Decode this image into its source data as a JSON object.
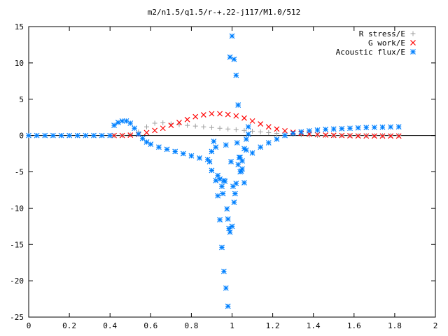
{
  "chart_data": {
    "type": "scatter",
    "title": "m2/n1.5/q1.5/r-+.22-j117/M1.0/512",
    "xlim": [
      0,
      2
    ],
    "ylim": [
      -25,
      15
    ],
    "x_ticks": [
      "0",
      "0.2",
      "0.4",
      "0.6",
      "0.8",
      "1",
      "1.2",
      "1.4",
      "1.6",
      "1.8",
      "2"
    ],
    "y_ticks": [
      "15",
      "10",
      "5",
      "0",
      "-5",
      "-10",
      "-15",
      "-20",
      "-25"
    ],
    "grid": false,
    "legend_position": "top-right",
    "series": [
      {
        "name": "R stress/E",
        "marker": "plus",
        "color": "#a0a0a0",
        "x": [
          0.42,
          0.46,
          0.5,
          0.54,
          0.58,
          0.62,
          0.66,
          0.7,
          0.74,
          0.78,
          0.82,
          0.86,
          0.9,
          0.94,
          0.98,
          1.02,
          1.06,
          1.1,
          1.14,
          1.18,
          1.22,
          1.26,
          1.3,
          1.34,
          1.38,
          1.42,
          1.46,
          1.5,
          1.54,
          1.58,
          1.62,
          1.66,
          1.7,
          1.74,
          1.78,
          1.82
        ],
        "y": [
          0.0,
          0.02,
          0.1,
          0.5,
          1.2,
          1.7,
          1.75,
          1.6,
          1.5,
          1.4,
          1.3,
          1.2,
          1.1,
          1.0,
          0.9,
          0.8,
          0.7,
          0.6,
          0.5,
          0.4,
          0.3,
          0.2,
          0.15,
          0.1,
          0.05,
          0.02,
          0.0,
          0.0,
          0.0,
          0.0,
          0.0,
          0.0,
          0.0,
          0.0,
          0.0,
          0.0
        ]
      },
      {
        "name": "G work/E",
        "marker": "cross",
        "color": "#ff0000",
        "x": [
          0.42,
          0.46,
          0.5,
          0.54,
          0.58,
          0.62,
          0.66,
          0.7,
          0.74,
          0.78,
          0.82,
          0.86,
          0.9,
          0.94,
          0.98,
          1.02,
          1.06,
          1.1,
          1.14,
          1.18,
          1.22,
          1.26,
          1.3,
          1.34,
          1.38,
          1.42,
          1.46,
          1.5,
          1.54,
          1.58,
          1.62,
          1.66,
          1.7,
          1.74,
          1.78,
          1.82
        ],
        "y": [
          0.0,
          0.0,
          0.05,
          0.15,
          0.4,
          0.7,
          1.0,
          1.4,
          1.8,
          2.2,
          2.6,
          2.85,
          3.0,
          3.0,
          2.9,
          2.7,
          2.4,
          2.0,
          1.6,
          1.2,
          0.9,
          0.65,
          0.45,
          0.3,
          0.2,
          0.12,
          0.07,
          0.03,
          0.0,
          -0.03,
          -0.05,
          -0.06,
          -0.07,
          -0.07,
          -0.07,
          -0.07
        ]
      },
      {
        "name": "Acoustic flux/E",
        "marker": "star",
        "color": "#0080ff",
        "x": [
          0.0,
          0.04,
          0.08,
          0.12,
          0.16,
          0.2,
          0.24,
          0.28,
          0.32,
          0.36,
          0.4,
          0.42,
          0.44,
          0.46,
          0.48,
          0.5,
          0.52,
          0.54,
          0.56,
          0.58,
          0.6,
          0.64,
          0.68,
          0.72,
          0.76,
          0.8,
          0.84,
          0.88,
          0.9,
          0.92,
          0.93,
          0.94,
          0.95,
          0.96,
          0.97,
          0.98,
          0.99,
          1.0,
          1.01,
          1.02,
          1.03,
          1.04,
          1.05,
          1.06,
          1.07,
          1.08,
          1.1,
          1.14,
          1.18,
          1.22,
          1.26,
          1.3,
          1.34,
          1.38,
          1.42,
          1.46,
          1.5,
          1.54,
          1.58,
          1.62,
          1.66,
          1.7,
          1.74,
          1.78,
          1.82,
          0.89,
          0.9,
          0.91,
          0.92,
          0.93,
          0.94,
          0.95,
          0.96,
          0.97,
          0.98,
          0.99,
          1.0,
          1.01,
          1.02,
          1.03,
          1.04,
          1.05,
          1.06,
          1.07,
          1.08,
          0.955,
          0.965,
          0.975,
          0.985,
          0.995,
          1.005,
          1.015,
          1.025,
          1.035,
          1.045
        ],
        "y": [
          0.0,
          0.0,
          0.0,
          0.0,
          0.0,
          0.0,
          0.0,
          0.0,
          0.0,
          0.0,
          0.0,
          1.4,
          1.8,
          2.0,
          2.0,
          1.7,
          1.0,
          0.2,
          -0.4,
          -0.9,
          -1.2,
          -1.6,
          -1.9,
          -2.2,
          -2.5,
          -2.8,
          -3.1,
          -3.3,
          -2.2,
          -1.6,
          -5.5,
          -6.0,
          -7.0,
          -6.2,
          -1.3,
          -11.5,
          10.8,
          13.7,
          10.5,
          8.3,
          4.2,
          -3.0,
          -4.6,
          -6.5,
          -2.0,
          1.2,
          -2.4,
          -1.6,
          -1.0,
          -0.5,
          0.0,
          0.3,
          0.5,
          0.65,
          0.75,
          0.85,
          0.9,
          0.95,
          1.0,
          1.05,
          1.1,
          1.12,
          1.15,
          1.18,
          1.2,
          -3.6,
          -4.8,
          -0.8,
          -6.2,
          -8.3,
          -11.6,
          -15.4,
          -18.7,
          -21.0,
          -23.5,
          -13.3,
          -12.5,
          -9.2,
          -6.6,
          -4.0,
          -5.0,
          -3.5,
          -1.8,
          -0.5,
          0.2,
          -8.0,
          -6.3,
          -10.1,
          -12.8,
          -3.6,
          -7.0,
          -8.0,
          -1.0,
          -3.0,
          -4.9
        ]
      }
    ]
  }
}
